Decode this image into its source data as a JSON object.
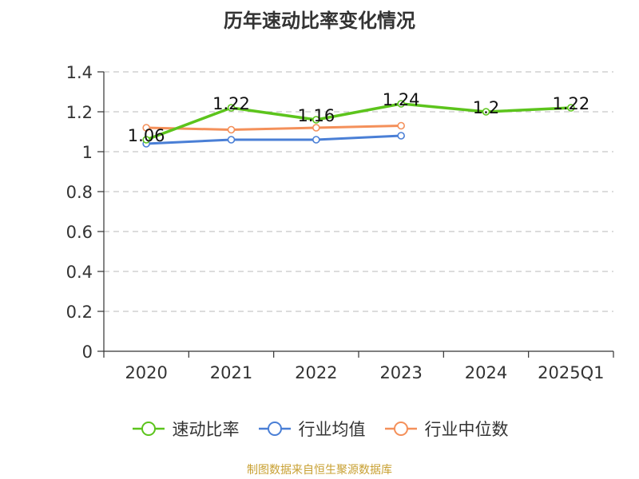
{
  "chart_data": {
    "type": "line",
    "title": "历年速动比率变化情况",
    "categories": [
      "2020",
      "2021",
      "2022",
      "2023",
      "2024",
      "2025Q1"
    ],
    "ylim": [
      0,
      1.4
    ],
    "yticks": [
      "0",
      "0.2",
      "0.4",
      "0.6",
      "0.8",
      "1",
      "1.2",
      "1.4"
    ],
    "grid": true,
    "legend_position": "bottom",
    "series": [
      {
        "name": "速动比率",
        "color": "#5cc41c",
        "values": [
          1.06,
          1.22,
          1.16,
          1.24,
          1.2,
          1.22
        ],
        "labels": [
          "1.06",
          "1.22",
          "1.16",
          "1.24",
          "1.2",
          "1.22"
        ]
      },
      {
        "name": "行业均值",
        "color": "#4a7fd6",
        "values": [
          1.04,
          1.06,
          1.06,
          1.08,
          null,
          null
        ]
      },
      {
        "name": "行业中位数",
        "color": "#f4905a",
        "values": [
          1.12,
          1.11,
          1.12,
          1.13,
          null,
          null
        ]
      }
    ]
  },
  "source": "制图数据来自恒生聚源数据库"
}
